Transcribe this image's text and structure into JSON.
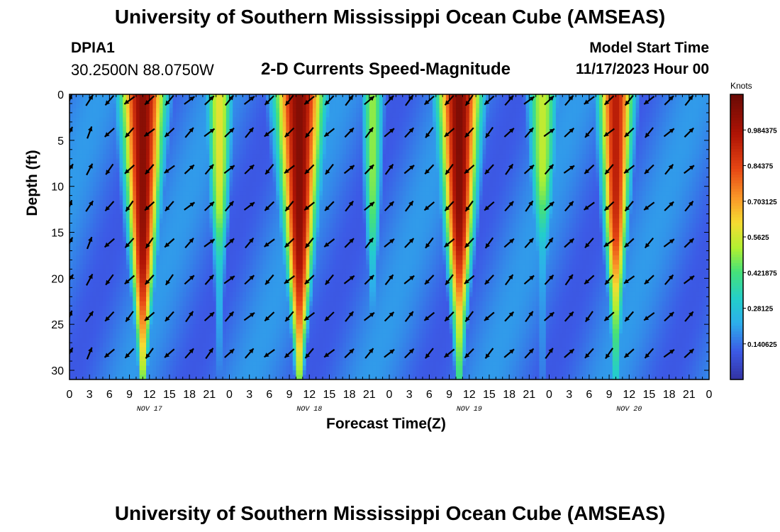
{
  "header": {
    "title": "University of Southern Mississippi Ocean Cube (AMSEAS)",
    "station_id": "DPIA1",
    "coordinates": "30.2500N  88.0750W",
    "subtitle": "2-D Currents Speed-Magnitude",
    "model_start_label": "Model Start Time",
    "model_start_value": "11/17/2023 Hour 00"
  },
  "footer": {
    "title_repeat": "University of Southern Mississippi Ocean Cube (AMSEAS)"
  },
  "colors": {
    "arrow": "#000000",
    "frame": "#000000"
  },
  "chart_data": {
    "type": "heatmap",
    "title": "2-D Currents Speed-Magnitude",
    "xlabel": "Forecast Time(Z)",
    "ylabel": "Depth (ft)",
    "xlim": [
      0,
      96
    ],
    "ylim": [
      0,
      31
    ],
    "x_ticks": [
      0,
      3,
      6,
      9,
      12,
      15,
      18,
      21,
      24,
      27,
      30,
      33,
      36,
      39,
      42,
      45,
      48,
      51,
      54,
      57,
      60,
      63,
      66,
      69,
      72,
      75,
      78,
      81,
      84,
      87,
      90,
      93,
      96
    ],
    "x_tick_labels": [
      "0",
      "3",
      "6",
      "9",
      "12",
      "15",
      "18",
      "21",
      "0",
      "3",
      "6",
      "9",
      "12",
      "15",
      "18",
      "21",
      "0",
      "3",
      "6",
      "9",
      "12",
      "15",
      "18",
      "21",
      "0",
      "3",
      "6",
      "9",
      "12",
      "15",
      "18",
      "21",
      "0"
    ],
    "date_labels": [
      {
        "hour": 12,
        "label": "NOV 17"
      },
      {
        "hour": 36,
        "label": "NOV 18"
      },
      {
        "hour": 60,
        "label": "NOV 19"
      },
      {
        "hour": 84,
        "label": "NOV 20"
      }
    ],
    "y_ticks": [
      0,
      5,
      10,
      15,
      20,
      25,
      30
    ],
    "y_tick_labels": [
      "0",
      "5",
      "10",
      "15",
      "20",
      "25",
      "30"
    ],
    "colorbar": {
      "unit": "Knots",
      "min": 0,
      "max": 1.125,
      "tick_values": [
        0.140625,
        0.28125,
        0.421875,
        0.5625,
        0.703125,
        0.84375,
        0.984375
      ],
      "tick_labels": [
        "0.140625",
        "0.28125",
        "0.421875",
        "0.5625",
        "0.703125",
        "0.84375",
        "0.984375"
      ]
    },
    "speed_peaks_knots": [
      {
        "center_hour": 11,
        "peak": 1.06,
        "surface_width_hours": 3.3,
        "bottom_width_hours": 0.6,
        "depth_scale_ft": 26
      },
      {
        "center_hour": 22.5,
        "peak": 0.6,
        "surface_width_hours": 2.0,
        "bottom_width_hours": 0.4,
        "depth_scale_ft": 16
      },
      {
        "center_hour": 34.5,
        "peak": 1.07,
        "surface_width_hours": 3.6,
        "bottom_width_hours": 0.6,
        "depth_scale_ft": 26
      },
      {
        "center_hour": 45.5,
        "peak": 0.5,
        "surface_width_hours": 1.7,
        "bottom_width_hours": 0.4,
        "depth_scale_ft": 17
      },
      {
        "center_hour": 58.5,
        "peak": 1.08,
        "surface_width_hours": 3.2,
        "bottom_width_hours": 0.6,
        "depth_scale_ft": 22
      },
      {
        "center_hour": 71,
        "peak": 0.55,
        "surface_width_hours": 2.3,
        "bottom_width_hours": 0.5,
        "depth_scale_ft": 14
      },
      {
        "center_hour": 82,
        "peak": 0.95,
        "surface_width_hours": 2.6,
        "bottom_width_hours": 0.5,
        "depth_scale_ft": 21
      }
    ],
    "background_speed_knots": 0.18,
    "vector_depths_ft": [
      0.5,
      4,
      8,
      12,
      16,
      20,
      24,
      28
    ],
    "vector_hours": [
      0,
      3,
      6,
      9,
      12,
      15,
      18,
      21,
      24,
      27,
      30,
      33,
      36,
      39,
      42,
      45,
      48,
      51,
      54,
      57,
      60,
      63,
      66,
      69,
      72,
      75,
      78,
      81,
      84,
      87,
      90,
      93
    ],
    "vector_direction_pattern_deg": [
      {
        "hour_range": [
          0,
          6
        ],
        "deg": 30
      },
      {
        "hour_range": [
          6,
          17
        ],
        "deg": 225
      },
      {
        "hour_range": [
          17,
          30
        ],
        "deg": 45
      },
      {
        "hour_range": [
          30,
          41
        ],
        "deg": 225
      },
      {
        "hour_range": [
          41,
          54
        ],
        "deg": 45
      },
      {
        "hour_range": [
          54,
          66
        ],
        "deg": 225
      },
      {
        "hour_range": [
          66,
          78
        ],
        "deg": 45
      },
      {
        "hour_range": [
          78,
          90
        ],
        "deg": 225
      },
      {
        "hour_range": [
          90,
          96
        ],
        "deg": 45
      }
    ]
  }
}
